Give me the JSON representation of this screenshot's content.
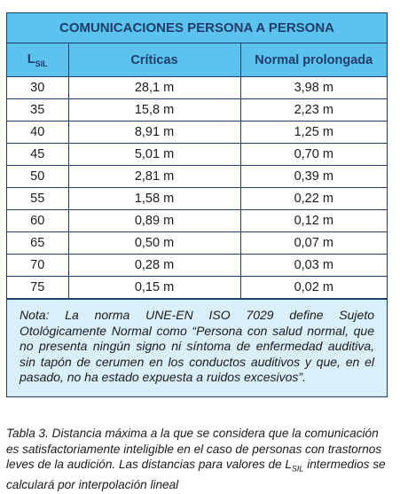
{
  "table": {
    "title": "COMUNICACIONES PERSONA A PERSONA",
    "header": {
      "lsil_main": "L",
      "lsil_sub": "SIL",
      "col1": "Críticas",
      "col2": "Normal prolongada"
    },
    "rows": [
      [
        "30",
        "28,1 m",
        "3,98 m"
      ],
      [
        "35",
        "15,8 m",
        "2,23 m"
      ],
      [
        "40",
        "8,91 m",
        "1,25 m"
      ],
      [
        "45",
        "5,01 m",
        "0,70 m"
      ],
      [
        "50",
        "2,81 m",
        "0,39 m"
      ],
      [
        "55",
        "1,58 m",
        "0,22 m"
      ],
      [
        "60",
        "0,89 m",
        "0,12 m"
      ],
      [
        "65",
        "0,50 m",
        "0,07 m"
      ],
      [
        "70",
        "0,28 m",
        "0,03 m"
      ],
      [
        "75",
        "0,15 m",
        "0,02 m"
      ]
    ],
    "note": "Nota: La norma UNE-EN ISO 7029 define Sujeto Otológicamente Normal como “Persona con salud normal, que no presenta ningún signo ni síntoma de enfermedad auditiva, sin tapón de cerumen en los conductos auditivos y que, en el pasado, no ha estado expuesta a ruidos excesivos”."
  },
  "caption": {
    "before": "Tabla 3. Distancia máxima a la que se considera que la comunicación es satisfactoriamente inteligible en el caso de personas con trastornos leves de la audición. Las distancias para valores de L",
    "sub": "SIL",
    "after": " intermedios se calculará por interpolación lineal"
  }
}
